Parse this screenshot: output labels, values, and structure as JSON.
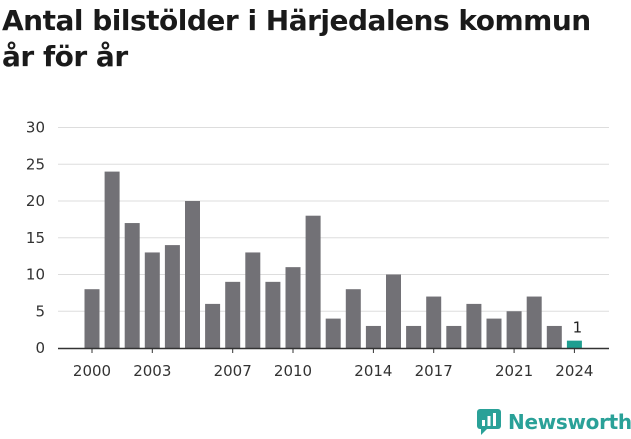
{
  "title": "Antal bilstölder i Härjedalens kommun år för år",
  "brand": {
    "name": "Newsworthy"
  },
  "colors": {
    "bar": "#727176",
    "highlight": "#1f9e90",
    "grid": "#dddddd",
    "axis": "#333333",
    "brand": "#2aa198"
  },
  "chart_data": {
    "type": "bar",
    "title": "Antal bilstölder i Härjedalens kommun år för år",
    "xlabel": "",
    "ylabel": "",
    "ylim": [
      0,
      30
    ],
    "yticks": [
      0,
      5,
      10,
      15,
      20,
      25,
      30
    ],
    "grid": true,
    "categories": [
      "2000",
      "2001",
      "2002",
      "2003",
      "2004",
      "2005",
      "2006",
      "2007",
      "2008",
      "2009",
      "2010",
      "2011",
      "2012",
      "2013",
      "2014",
      "2015",
      "2016",
      "2017",
      "2018",
      "2019",
      "2020",
      "2021",
      "2022",
      "2023",
      "2024"
    ],
    "values": [
      8,
      24,
      17,
      13,
      14,
      20,
      6,
      9,
      13,
      9,
      11,
      18,
      4,
      8,
      3,
      10,
      3,
      7,
      3,
      6,
      4,
      5,
      7,
      3,
      1
    ],
    "xtick_labels": [
      "2000",
      "2003",
      "2007",
      "2010",
      "2014",
      "2017",
      "2021",
      "2024"
    ],
    "highlight_category": "2024",
    "data_labels": [
      {
        "category": "2024",
        "text": "1"
      }
    ]
  }
}
